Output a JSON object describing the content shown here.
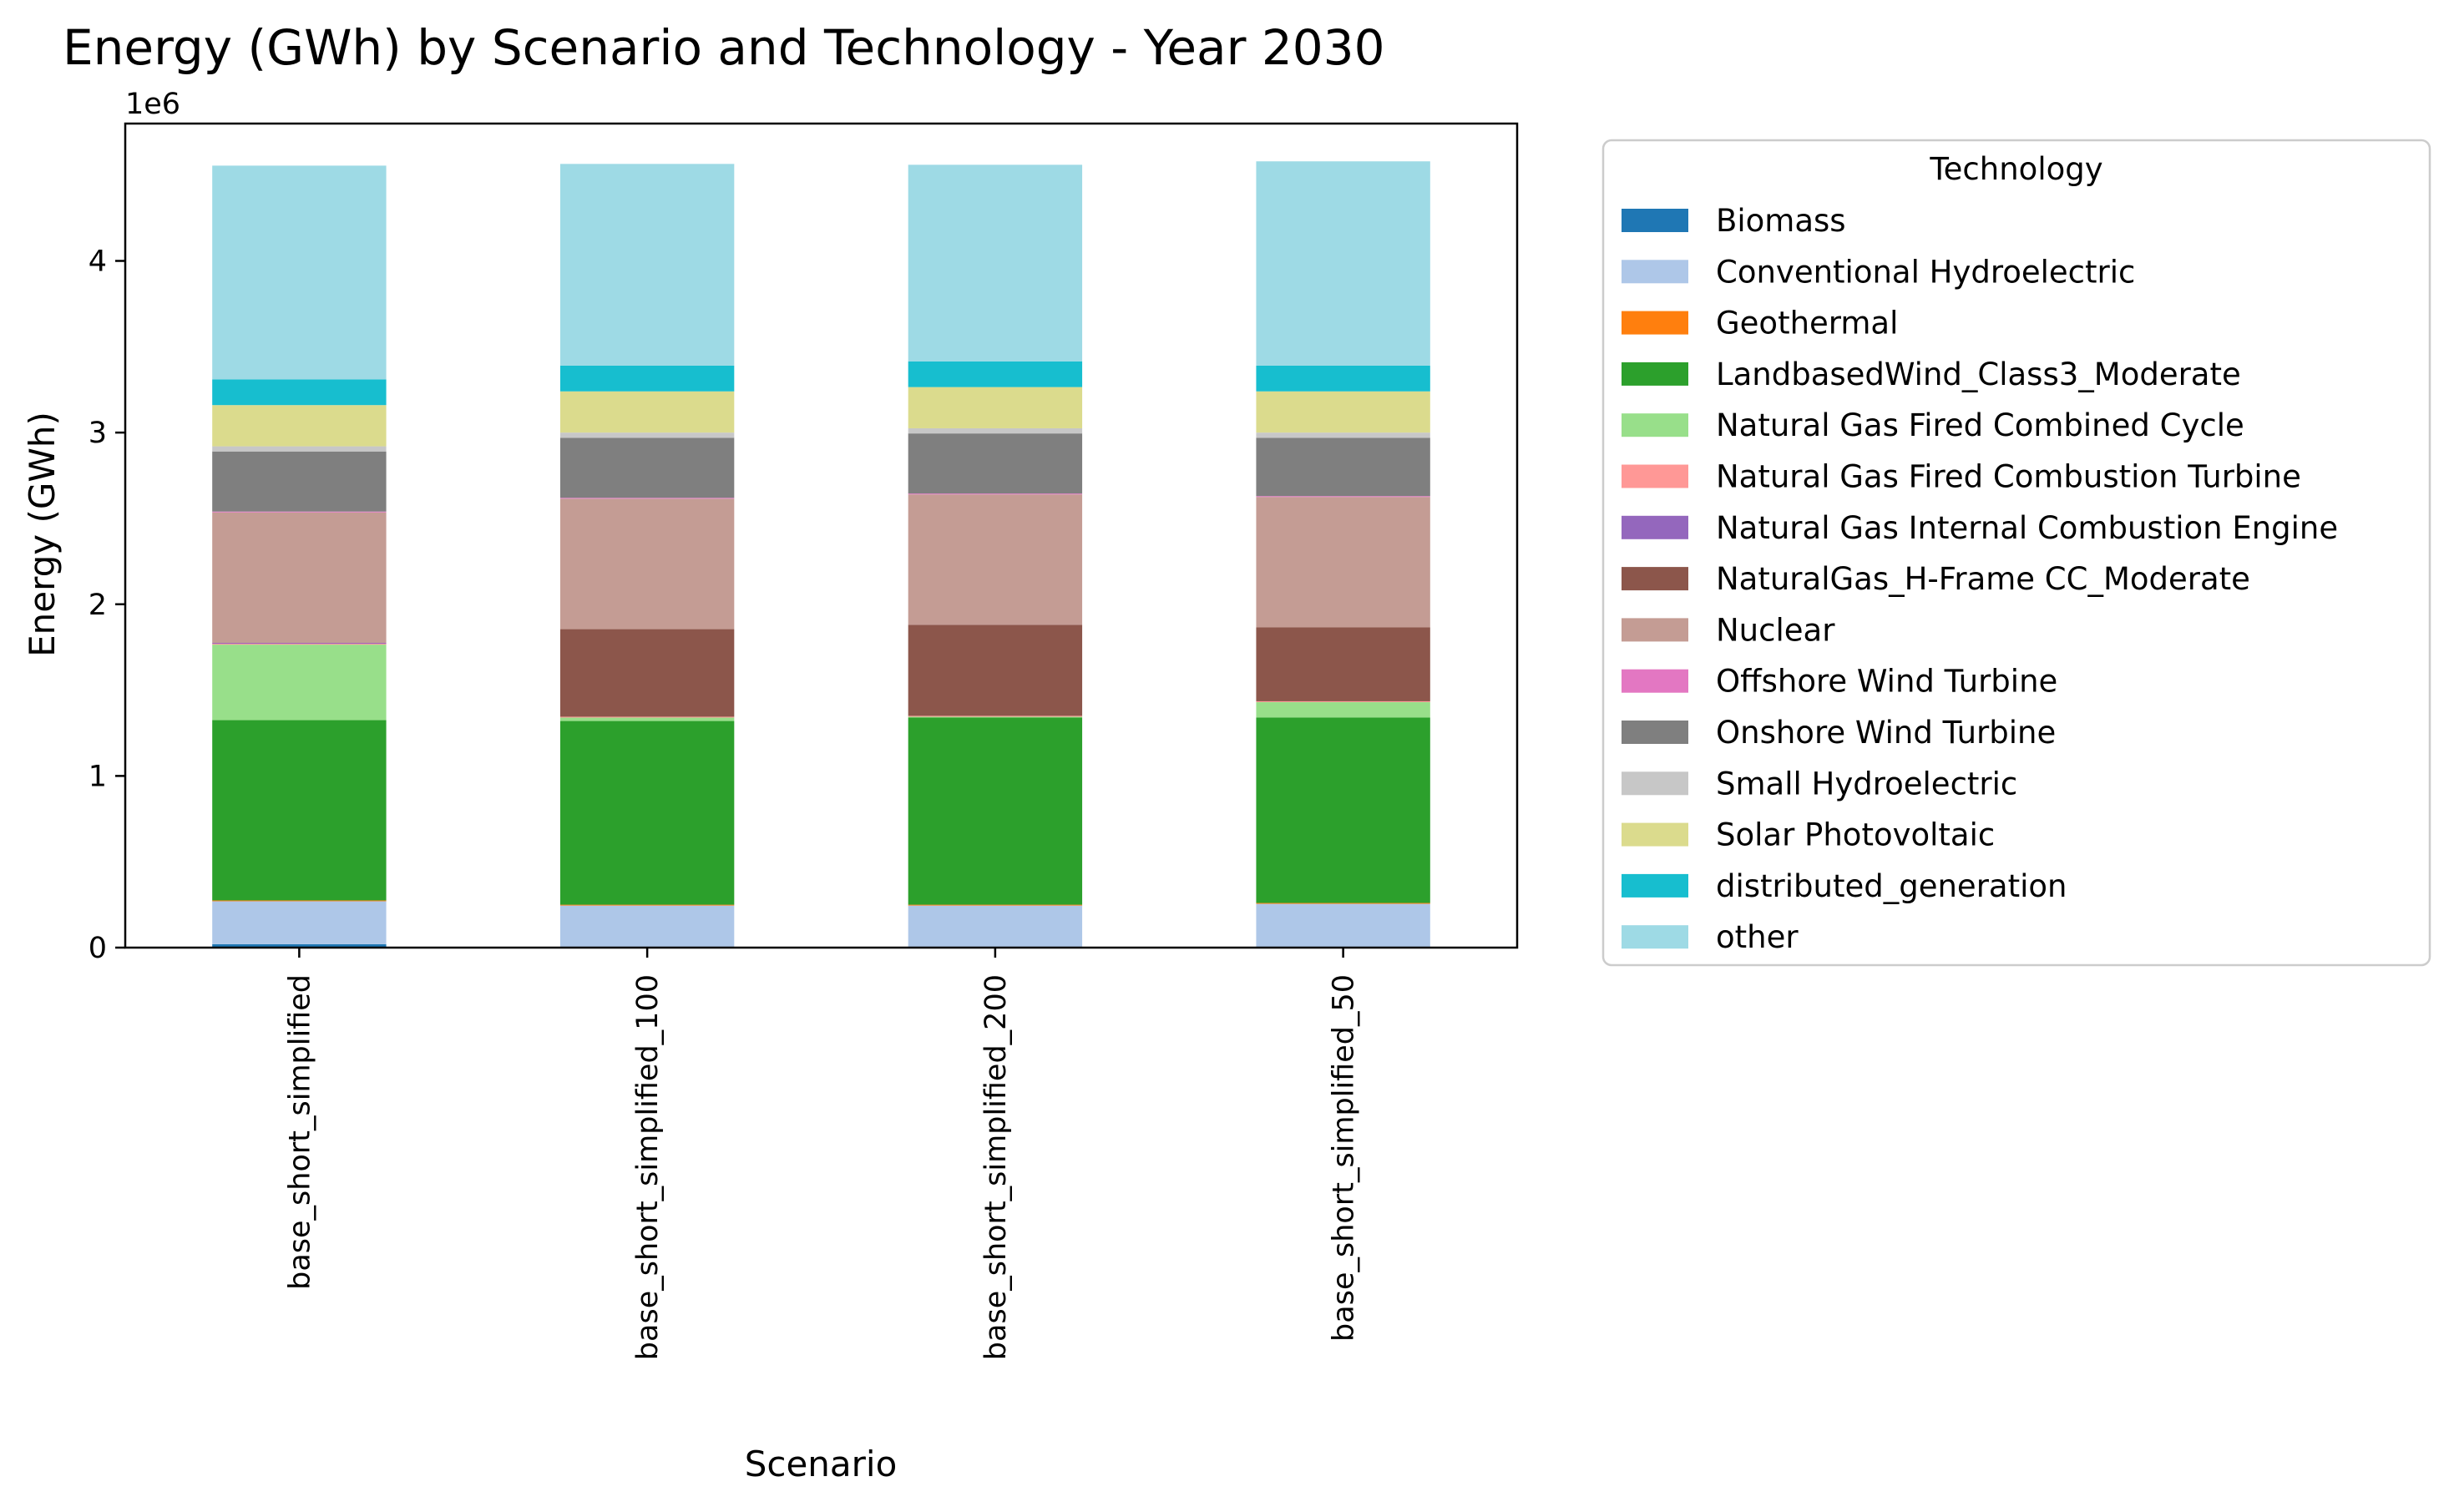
{
  "chart_data": {
    "type": "bar",
    "stacked": true,
    "title": "Energy (GWh) by Scenario and Technology - Year 2030",
    "xlabel": "Scenario",
    "ylabel": "Energy (GWh)",
    "y_offset_label": "1e6",
    "y_scale": 1000000,
    "ylim": [
      0,
      4800000
    ],
    "yticks": [
      0,
      1000000,
      2000000,
      3000000,
      4000000
    ],
    "ytick_labels": [
      "0",
      "1",
      "2",
      "3",
      "4"
    ],
    "grid": false,
    "legend_title": "Technology",
    "legend_placement": "outside-right",
    "categories": [
      "base_short_simplified",
      "base_short_simplified_100",
      "base_short_simplified_200",
      "base_short_simplified_50"
    ],
    "series": [
      {
        "name": "Biomass",
        "color": "#1f77b4",
        "values": [
          20000,
          5000,
          5000,
          5000
        ]
      },
      {
        "name": "Conventional Hydroelectric",
        "color": "#aec7e8",
        "values": [
          250000,
          240000,
          240000,
          250000
        ]
      },
      {
        "name": "Geothermal",
        "color": "#ff7f0e",
        "values": [
          5000,
          5000,
          5000,
          5000
        ]
      },
      {
        "name": "LandbasedWind_Class3_Moderate",
        "color": "#2ca02c",
        "values": [
          1050000,
          1070000,
          1090000,
          1080000
        ]
      },
      {
        "name": "Natural Gas Fired Combined Cycle",
        "color": "#98df8a",
        "values": [
          440000,
          20000,
          5000,
          90000
        ]
      },
      {
        "name": "Natural Gas Fired Combustion Turbine",
        "color": "#ff9896",
        "values": [
          5000,
          5000,
          5000,
          5000
        ]
      },
      {
        "name": "Natural Gas Internal Combustion Engine",
        "color": "#9467bd",
        "values": [
          5000,
          0,
          0,
          0
        ]
      },
      {
        "name": "NaturalGas_H-Frame CC_Moderate",
        "color": "#8c564b",
        "values": [
          0,
          510000,
          530000,
          430000
        ]
      },
      {
        "name": "Nuclear",
        "color": "#c49c94",
        "values": [
          760000,
          760000,
          760000,
          760000
        ]
      },
      {
        "name": "Offshore Wind Turbine",
        "color": "#e377c2",
        "values": [
          5000,
          5000,
          5000,
          5000
        ]
      },
      {
        "name": "Onshore Wind Turbine",
        "color": "#7f7f7f",
        "values": [
          350000,
          350000,
          350000,
          340000
        ]
      },
      {
        "name": "Small Hydroelectric",
        "color": "#c7c7c7",
        "values": [
          30000,
          30000,
          30000,
          30000
        ]
      },
      {
        "name": "Solar Photovoltaic",
        "color": "#dbdb8d",
        "values": [
          240000,
          240000,
          240000,
          240000
        ]
      },
      {
        "name": "distributed_generation",
        "color": "#17becf",
        "values": [
          150000,
          150000,
          150000,
          150000
        ]
      },
      {
        "name": "other",
        "color": "#9edae5",
        "values": [
          1245000,
          1175000,
          1145000,
          1190000
        ]
      }
    ]
  }
}
